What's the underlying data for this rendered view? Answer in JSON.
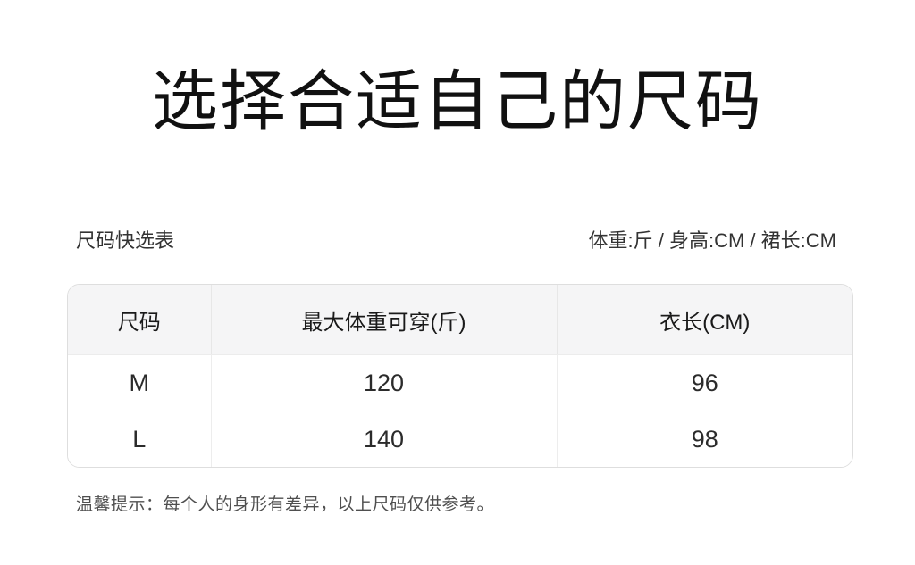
{
  "page": {
    "title": "选择合适自己的尺码"
  },
  "size_table": {
    "caption_left": "尺码快选表",
    "caption_right": "体重:斤 / 身高:CM / 裙长:CM",
    "columns": [
      "尺码",
      "最大体重可穿(斤)",
      "衣长(CM)"
    ],
    "rows": [
      [
        "M",
        "120",
        "96"
      ],
      [
        "L",
        "140",
        "98"
      ]
    ]
  },
  "note": {
    "text": "温馨提示：每个人的身形有差异，以上尺码仅供参考。"
  },
  "colors": {
    "header_bg": "#f5f5f6",
    "table_border": "#dedede",
    "inner_border": "#ededed",
    "title_text": "#111111",
    "body_text": "#333333",
    "note_text": "#4f4f4f"
  }
}
